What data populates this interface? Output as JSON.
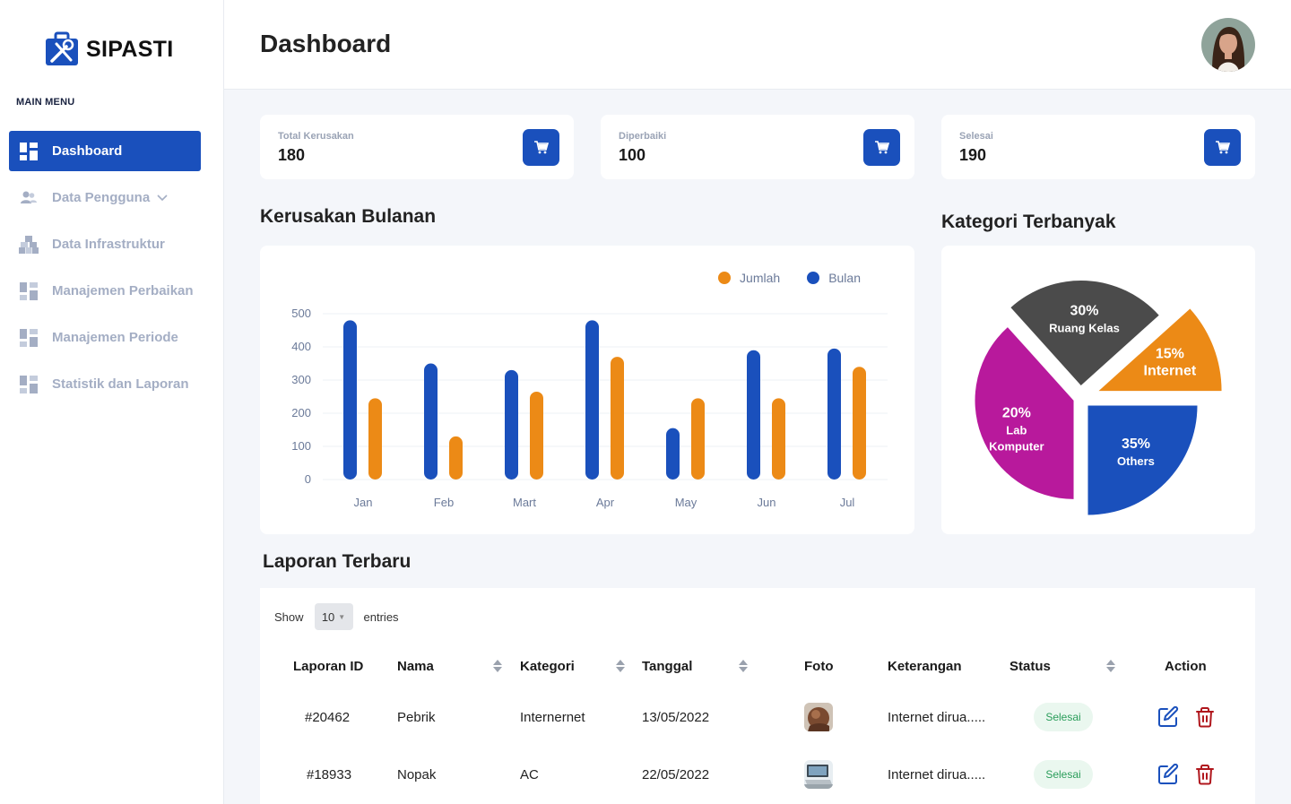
{
  "app": {
    "name": "SIPASTI"
  },
  "sidebar": {
    "menu_title": "MAIN MENU",
    "items": [
      {
        "label": "Dashboard",
        "icon": "dashboard-icon",
        "active": true
      },
      {
        "label": "Data Pengguna",
        "icon": "users-icon"
      },
      {
        "label": "Data Infrastruktur",
        "icon": "boxes-icon"
      },
      {
        "label": "Manajemen Perbaikan",
        "icon": "dashboard-icon"
      },
      {
        "label": "Manajemen Periode",
        "icon": "dashboard-icon"
      },
      {
        "label": "Statistik dan Laporan",
        "icon": "dashboard-icon"
      }
    ]
  },
  "header": {
    "title": "Dashboard"
  },
  "stats": [
    {
      "label": "Total Kerusakan",
      "value": "180"
    },
    {
      "label": "Diperbaiki",
      "value": "100"
    },
    {
      "label": "Selesai",
      "value": "190"
    }
  ],
  "monthly": {
    "title": "Kerusakan Bulanan"
  },
  "category": {
    "title": "Kategori Terbanyak"
  },
  "colors": {
    "primary": "#1a50bc",
    "orange": "#ec8a16",
    "magenta": "#b8199c",
    "gray": "#4b4b4b"
  },
  "chart_data": [
    {
      "type": "bar",
      "categories": [
        "Jan",
        "Feb",
        "Mart",
        "Apr",
        "May",
        "Jun",
        "Jul"
      ],
      "series": [
        {
          "name": "Bulan",
          "color": "#1a50bc",
          "values": [
            480,
            350,
            330,
            480,
            155,
            390,
            395
          ]
        },
        {
          "name": "Jumlah",
          "color": "#ec8a16",
          "values": [
            245,
            130,
            265,
            370,
            245,
            245,
            340
          ]
        }
      ],
      "legend": [
        "Jumlah",
        "Bulan"
      ],
      "legend_position": "top-right",
      "yticks": [
        0,
        100,
        200,
        300,
        400,
        500
      ],
      "ylim": [
        0,
        500
      ],
      "grid": true
    },
    {
      "type": "pie",
      "slices": [
        {
          "label": "Ruang Kelas",
          "pct_label": "30%",
          "value": 30,
          "color": "#4b4b4b"
        },
        {
          "label": "Internet",
          "pct_label": "15%",
          "value": 15,
          "color": "#ec8a16"
        },
        {
          "label": "Others",
          "pct_label": "35%",
          "value": 35,
          "color": "#1a50bc"
        },
        {
          "label": "Lab Komputer",
          "pct_label": "20%",
          "value": 20,
          "color": "#b8199c"
        }
      ]
    }
  ],
  "reports": {
    "title": "Laporan Terbaru",
    "show_label": "Show",
    "entries_value": "10",
    "entries_label": "entries",
    "columns": [
      "Laporan ID",
      "Nama",
      "Kategori",
      "Tanggal",
      "Foto",
      "Keterangan",
      "Status",
      "Action"
    ],
    "rows": [
      {
        "id": "#20462",
        "nama": "Pebrik",
        "kategori": "Internernet",
        "tanggal": "13/05/2022",
        "keterangan": "Internet dirua.....",
        "status": "Selesai"
      },
      {
        "id": "#18933",
        "nama": "Nopak",
        "kategori": "AC",
        "tanggal": "22/05/2022",
        "keterangan": "Internet dirua.....",
        "status": "Selesai"
      }
    ]
  }
}
